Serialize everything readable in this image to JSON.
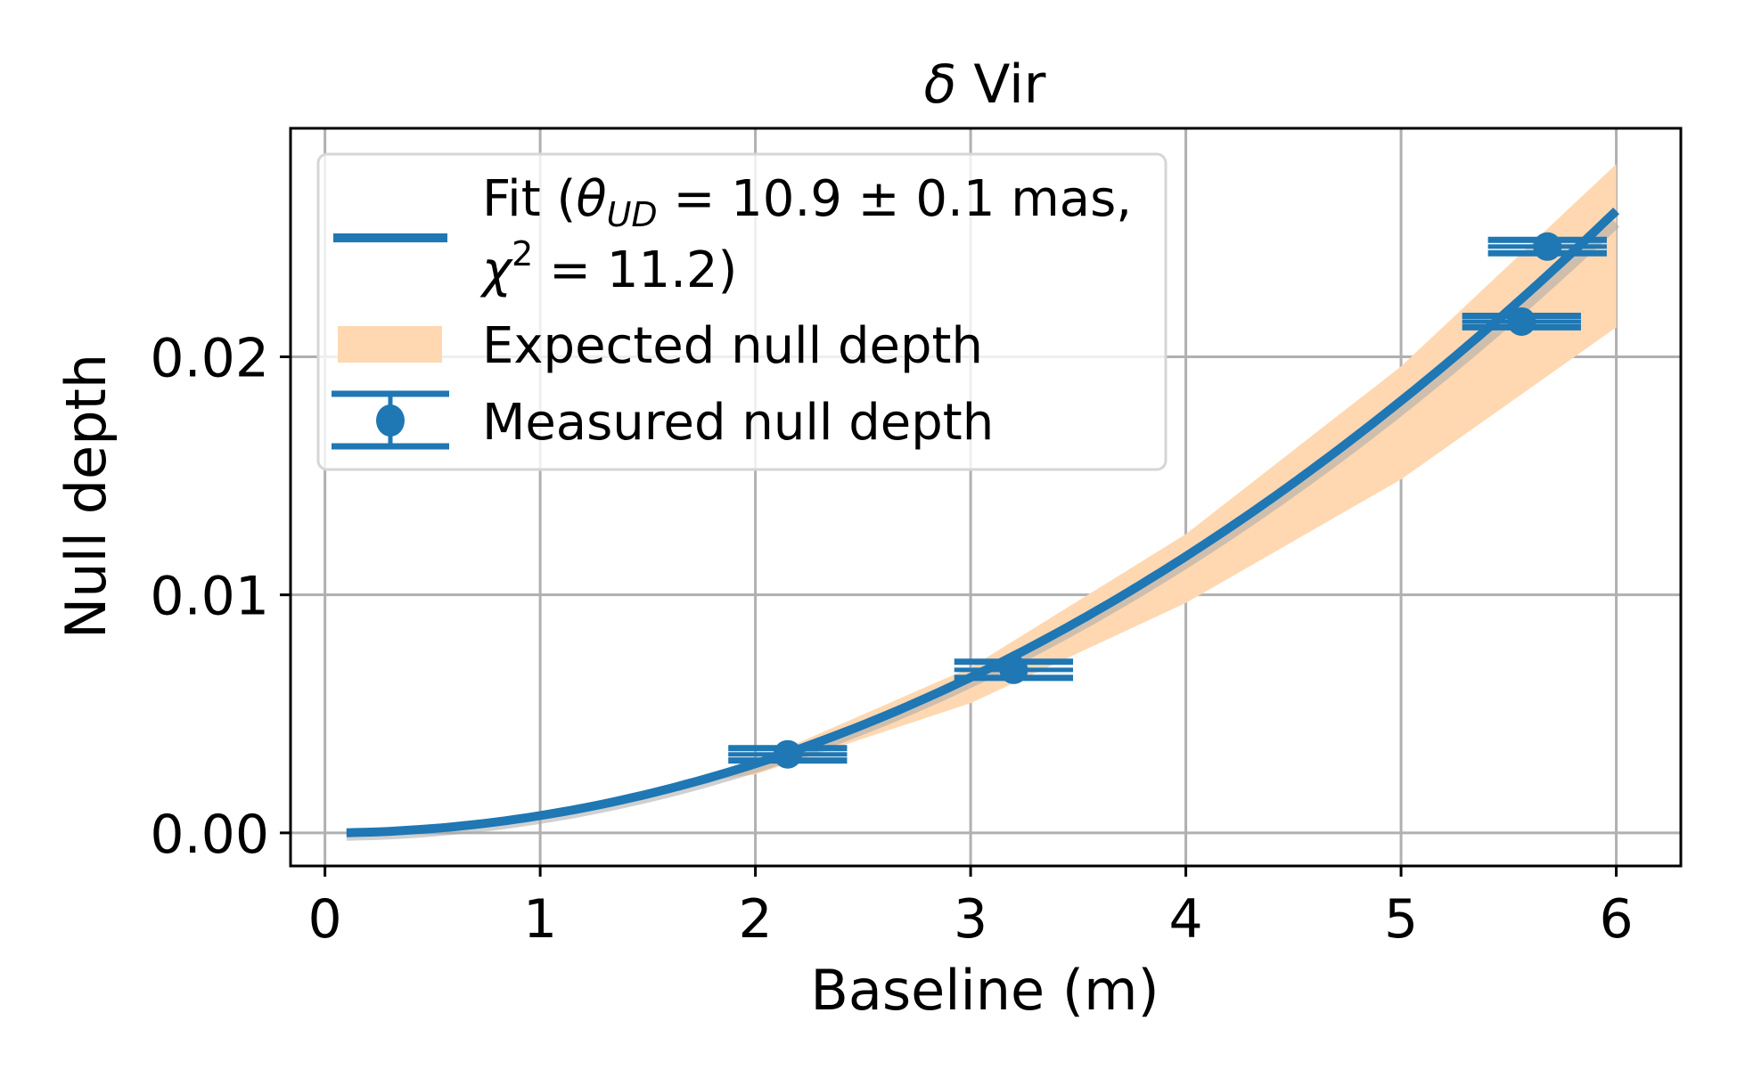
{
  "chart_data": {
    "type": "scatter",
    "title": "δ Vir",
    "title_parts": {
      "symbol": "δ",
      "name": " Vir"
    },
    "xlabel": "Baseline (m)",
    "ylabel": "Null depth",
    "xlim": [
      -0.16,
      6.3
    ],
    "ylim": [
      -0.00139,
      0.0296
    ],
    "xticks": [
      0,
      1,
      2,
      3,
      4,
      5,
      6
    ],
    "xtick_labels": [
      "0",
      "1",
      "2",
      "3",
      "4",
      "5",
      "6"
    ],
    "yticks": [
      0.0,
      0.01,
      0.02
    ],
    "ytick_labels": [
      "0.00",
      "0.01",
      "0.02"
    ],
    "grid": true,
    "legend_position": "upper-left",
    "colors": {
      "fit": "#1f77b4",
      "expected_band": "#ffd8b2",
      "measured": "#1f77b4",
      "grid": "#b0b0b0",
      "fit_uncertainty": "#a9a9a9"
    },
    "series": [
      {
        "name": "Fit",
        "kind": "line",
        "model": "quadratic",
        "x_range": [
          0.1,
          6.0
        ],
        "coefficient": 0.000726,
        "x": [
          0.1,
          1.0,
          2.0,
          3.0,
          4.0,
          5.0,
          6.0
        ],
        "y": [
          7.3e-06,
          0.000726,
          0.0029,
          0.00653,
          0.0116,
          0.01815,
          0.02614
        ]
      },
      {
        "name": "Expected null depth",
        "kind": "band",
        "x": [
          1.8,
          2.0,
          3.0,
          4.0,
          5.0,
          6.0
        ],
        "y_low": [
          0.00222,
          0.00246,
          0.00545,
          0.00966,
          0.01485,
          0.02124
        ],
        "y_high": [
          0.00245,
          0.003,
          0.00695,
          0.01255,
          0.0196,
          0.0281
        ]
      },
      {
        "name": "Measured null depth",
        "kind": "errorbar",
        "points": [
          {
            "x": 2.15,
            "y": 0.0033,
            "xerr": 0.276,
            "yerr": 0.00026
          },
          {
            "x": 3.2,
            "y": 0.00685,
            "xerr": 0.276,
            "yerr": 0.00034
          },
          {
            "x": 5.56,
            "y": 0.02148,
            "xerr": 0.276,
            "yerr": 0.00024
          },
          {
            "x": 5.68,
            "y": 0.02463,
            "xerr": 0.276,
            "yerr": 0.00028
          }
        ]
      }
    ],
    "legend": [
      {
        "kind": "line",
        "label_prefix": "Fit (",
        "theta": "θ",
        "theta_sub": "UD",
        "label_value": " = 10.9 ± 0.1 mas,",
        "chi": "χ",
        "chi_sup": "2",
        "label_line2": " = 11.2)"
      },
      {
        "kind": "band",
        "label": "Expected null depth"
      },
      {
        "kind": "errorbar",
        "label": "Measured null depth"
      }
    ]
  }
}
